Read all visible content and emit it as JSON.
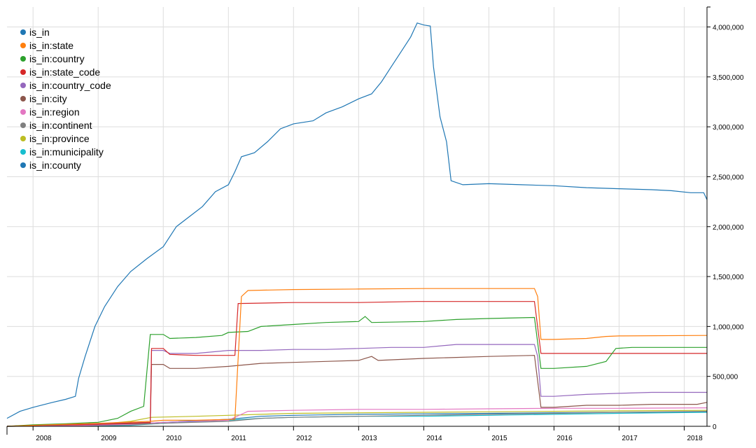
{
  "chart_data": {
    "type": "line",
    "title": "",
    "xlabel": "",
    "ylabel": "",
    "grid": true,
    "legend_position": "top-left",
    "x_ticks": [
      "2008",
      "2009",
      "2010",
      "2011",
      "2012",
      "2013",
      "2014",
      "2015",
      "2016",
      "2017",
      "2018"
    ],
    "y_ticks": [
      "0",
      "500,000",
      "1,000,000",
      "1,500,000",
      "2,000,000",
      "2,500,000",
      "3,000,000",
      "3,500,000",
      "4,000,000"
    ],
    "xlim": [
      2007.6,
      2018.35
    ],
    "ylim": [
      0,
      4200000
    ],
    "series": [
      {
        "name": "is_in",
        "color": "#1f77b4",
        "points": [
          [
            2007.6,
            80000
          ],
          [
            2007.8,
            150000
          ],
          [
            2008.0,
            190000
          ],
          [
            2008.3,
            240000
          ],
          [
            2008.5,
            270000
          ],
          [
            2008.65,
            300000
          ],
          [
            2008.7,
            480000
          ],
          [
            2008.8,
            700000
          ],
          [
            2008.95,
            1000000
          ],
          [
            2009.1,
            1200000
          ],
          [
            2009.3,
            1400000
          ],
          [
            2009.5,
            1550000
          ],
          [
            2009.75,
            1680000
          ],
          [
            2010.0,
            1800000
          ],
          [
            2010.2,
            2000000
          ],
          [
            2010.4,
            2100000
          ],
          [
            2010.6,
            2200000
          ],
          [
            2010.8,
            2350000
          ],
          [
            2011.0,
            2420000
          ],
          [
            2011.1,
            2550000
          ],
          [
            2011.2,
            2700000
          ],
          [
            2011.4,
            2740000
          ],
          [
            2011.6,
            2850000
          ],
          [
            2011.8,
            2980000
          ],
          [
            2012.0,
            3030000
          ],
          [
            2012.3,
            3060000
          ],
          [
            2012.5,
            3140000
          ],
          [
            2012.75,
            3200000
          ],
          [
            2013.0,
            3280000
          ],
          [
            2013.2,
            3330000
          ],
          [
            2013.35,
            3450000
          ],
          [
            2013.5,
            3600000
          ],
          [
            2013.65,
            3750000
          ],
          [
            2013.8,
            3900000
          ],
          [
            2013.9,
            4040000
          ],
          [
            2014.0,
            4020000
          ],
          [
            2014.1,
            4010000
          ],
          [
            2014.15,
            3600000
          ],
          [
            2014.25,
            3100000
          ],
          [
            2014.35,
            2850000
          ],
          [
            2014.42,
            2460000
          ],
          [
            2014.6,
            2420000
          ],
          [
            2015.0,
            2430000
          ],
          [
            2015.5,
            2420000
          ],
          [
            2016.0,
            2410000
          ],
          [
            2016.5,
            2390000
          ],
          [
            2017.0,
            2380000
          ],
          [
            2017.5,
            2370000
          ],
          [
            2017.8,
            2360000
          ],
          [
            2018.1,
            2340000
          ],
          [
            2018.3,
            2340000
          ],
          [
            2018.35,
            2270000
          ]
        ]
      },
      {
        "name": "is_in:state",
        "color": "#ff7f0e",
        "points": [
          [
            2007.6,
            0
          ],
          [
            2008.0,
            10000
          ],
          [
            2009.0,
            30000
          ],
          [
            2009.8,
            50000
          ],
          [
            2010.0,
            60000
          ],
          [
            2010.5,
            60000
          ],
          [
            2011.1,
            70000
          ],
          [
            2011.2,
            1300000
          ],
          [
            2011.3,
            1360000
          ],
          [
            2012.0,
            1370000
          ],
          [
            2013.0,
            1375000
          ],
          [
            2014.0,
            1380000
          ],
          [
            2015.0,
            1380000
          ],
          [
            2015.7,
            1380000
          ],
          [
            2015.75,
            1300000
          ],
          [
            2015.8,
            870000
          ],
          [
            2016.0,
            870000
          ],
          [
            2016.5,
            880000
          ],
          [
            2016.8,
            900000
          ],
          [
            2017.0,
            905000
          ],
          [
            2018.35,
            910000
          ]
        ]
      },
      {
        "name": "is_in:country",
        "color": "#2ca02c",
        "points": [
          [
            2007.6,
            0
          ],
          [
            2008.0,
            15000
          ],
          [
            2008.5,
            25000
          ],
          [
            2009.0,
            40000
          ],
          [
            2009.3,
            80000
          ],
          [
            2009.5,
            150000
          ],
          [
            2009.7,
            200000
          ],
          [
            2009.8,
            920000
          ],
          [
            2010.0,
            920000
          ],
          [
            2010.1,
            880000
          ],
          [
            2010.5,
            890000
          ],
          [
            2010.9,
            910000
          ],
          [
            2011.0,
            940000
          ],
          [
            2011.3,
            950000
          ],
          [
            2011.5,
            1000000
          ],
          [
            2012.0,
            1020000
          ],
          [
            2012.5,
            1040000
          ],
          [
            2013.0,
            1050000
          ],
          [
            2013.1,
            1100000
          ],
          [
            2013.2,
            1040000
          ],
          [
            2014.0,
            1050000
          ],
          [
            2014.5,
            1070000
          ],
          [
            2015.0,
            1080000
          ],
          [
            2015.7,
            1090000
          ],
          [
            2015.8,
            580000
          ],
          [
            2016.0,
            580000
          ],
          [
            2016.5,
            600000
          ],
          [
            2016.8,
            650000
          ],
          [
            2016.95,
            780000
          ],
          [
            2017.2,
            790000
          ],
          [
            2018.35,
            790000
          ]
        ]
      },
      {
        "name": "is_in:state_code",
        "color": "#d62728",
        "points": [
          [
            2007.6,
            0
          ],
          [
            2008.0,
            10000
          ],
          [
            2009.0,
            20000
          ],
          [
            2009.8,
            40000
          ],
          [
            2009.82,
            780000
          ],
          [
            2010.0,
            780000
          ],
          [
            2010.1,
            720000
          ],
          [
            2010.5,
            710000
          ],
          [
            2010.9,
            710000
          ],
          [
            2011.1,
            710000
          ],
          [
            2011.15,
            1230000
          ],
          [
            2012.0,
            1240000
          ],
          [
            2013.0,
            1240000
          ],
          [
            2013.9,
            1250000
          ],
          [
            2014.5,
            1250000
          ],
          [
            2015.0,
            1250000
          ],
          [
            2015.7,
            1250000
          ],
          [
            2015.8,
            730000
          ],
          [
            2016.0,
            730000
          ],
          [
            2017.0,
            730000
          ],
          [
            2018.35,
            730000
          ]
        ]
      },
      {
        "name": "is_in:country_code",
        "color": "#9467bd",
        "points": [
          [
            2007.6,
            0
          ],
          [
            2008.0,
            10000
          ],
          [
            2009.0,
            25000
          ],
          [
            2009.8,
            40000
          ],
          [
            2009.82,
            760000
          ],
          [
            2010.0,
            760000
          ],
          [
            2010.1,
            730000
          ],
          [
            2010.5,
            730000
          ],
          [
            2011.0,
            760000
          ],
          [
            2011.5,
            760000
          ],
          [
            2012.0,
            770000
          ],
          [
            2012.5,
            770000
          ],
          [
            2013.0,
            780000
          ],
          [
            2013.5,
            790000
          ],
          [
            2014.0,
            790000
          ],
          [
            2014.5,
            820000
          ],
          [
            2015.0,
            820000
          ],
          [
            2015.7,
            820000
          ],
          [
            2015.75,
            700000
          ],
          [
            2015.8,
            300000
          ],
          [
            2016.0,
            300000
          ],
          [
            2016.5,
            320000
          ],
          [
            2017.0,
            330000
          ],
          [
            2017.5,
            340000
          ],
          [
            2018.35,
            340000
          ]
        ]
      },
      {
        "name": "is_in:city",
        "color": "#8c564b",
        "points": [
          [
            2007.6,
            0
          ],
          [
            2008.0,
            10000
          ],
          [
            2009.0,
            20000
          ],
          [
            2009.8,
            30000
          ],
          [
            2009.82,
            620000
          ],
          [
            2010.0,
            620000
          ],
          [
            2010.1,
            580000
          ],
          [
            2010.5,
            580000
          ],
          [
            2011.0,
            600000
          ],
          [
            2011.5,
            630000
          ],
          [
            2012.0,
            640000
          ],
          [
            2012.5,
            650000
          ],
          [
            2013.0,
            660000
          ],
          [
            2013.2,
            700000
          ],
          [
            2013.3,
            660000
          ],
          [
            2014.0,
            680000
          ],
          [
            2014.5,
            690000
          ],
          [
            2015.0,
            700000
          ],
          [
            2015.7,
            710000
          ],
          [
            2015.8,
            190000
          ],
          [
            2016.0,
            190000
          ],
          [
            2016.5,
            210000
          ],
          [
            2017.0,
            210000
          ],
          [
            2017.5,
            220000
          ],
          [
            2018.2,
            220000
          ],
          [
            2018.35,
            240000
          ]
        ]
      },
      {
        "name": "is_in:region",
        "color": "#e377c2",
        "points": [
          [
            2007.6,
            0
          ],
          [
            2008.5,
            5000
          ],
          [
            2009.5,
            20000
          ],
          [
            2010.0,
            40000
          ],
          [
            2010.5,
            50000
          ],
          [
            2011.0,
            60000
          ],
          [
            2011.3,
            150000
          ],
          [
            2012.0,
            160000
          ],
          [
            2013.0,
            170000
          ],
          [
            2014.0,
            170000
          ],
          [
            2015.0,
            175000
          ],
          [
            2016.0,
            180000
          ],
          [
            2017.0,
            180000
          ],
          [
            2018.35,
            185000
          ]
        ]
      },
      {
        "name": "is_in:continent",
        "color": "#7f7f7f",
        "points": [
          [
            2007.6,
            0
          ],
          [
            2008.5,
            5000
          ],
          [
            2009.5,
            15000
          ],
          [
            2010.0,
            30000
          ],
          [
            2011.0,
            50000
          ],
          [
            2011.5,
            80000
          ],
          [
            2012.0,
            90000
          ],
          [
            2013.0,
            100000
          ],
          [
            2014.0,
            110000
          ],
          [
            2015.0,
            120000
          ],
          [
            2016.0,
            130000
          ],
          [
            2017.0,
            140000
          ],
          [
            2018.35,
            150000
          ]
        ]
      },
      {
        "name": "is_in:province",
        "color": "#bcbd22",
        "points": [
          [
            2007.6,
            0
          ],
          [
            2008.5,
            5000
          ],
          [
            2009.0,
            20000
          ],
          [
            2009.5,
            50000
          ],
          [
            2009.82,
            90000
          ],
          [
            2010.5,
            100000
          ],
          [
            2011.0,
            110000
          ],
          [
            2011.5,
            120000
          ],
          [
            2012.0,
            130000
          ],
          [
            2013.0,
            135000
          ],
          [
            2014.0,
            140000
          ],
          [
            2015.0,
            145000
          ],
          [
            2016.0,
            150000
          ],
          [
            2017.0,
            155000
          ],
          [
            2018.35,
            160000
          ]
        ]
      },
      {
        "name": "is_in:municipality",
        "color": "#17becf",
        "points": [
          [
            2007.6,
            0
          ],
          [
            2008.5,
            3000
          ],
          [
            2009.5,
            10000
          ],
          [
            2010.0,
            30000
          ],
          [
            2011.0,
            60000
          ],
          [
            2011.5,
            80000
          ],
          [
            2012.0,
            90000
          ],
          [
            2013.0,
            100000
          ],
          [
            2014.0,
            100000
          ],
          [
            2015.0,
            110000
          ],
          [
            2016.0,
            120000
          ],
          [
            2017.0,
            130000
          ],
          [
            2018.35,
            140000
          ]
        ]
      },
      {
        "name": "is_in:county",
        "color": "#1f77b4",
        "points": [
          [
            2007.6,
            0
          ],
          [
            2008.5,
            5000
          ],
          [
            2009.5,
            20000
          ],
          [
            2010.0,
            40000
          ],
          [
            2011.0,
            70000
          ],
          [
            2011.5,
            100000
          ],
          [
            2012.0,
            110000
          ],
          [
            2013.0,
            120000
          ],
          [
            2014.0,
            125000
          ],
          [
            2015.0,
            130000
          ],
          [
            2016.0,
            135000
          ],
          [
            2017.0,
            140000
          ],
          [
            2018.35,
            145000
          ]
        ]
      }
    ]
  }
}
